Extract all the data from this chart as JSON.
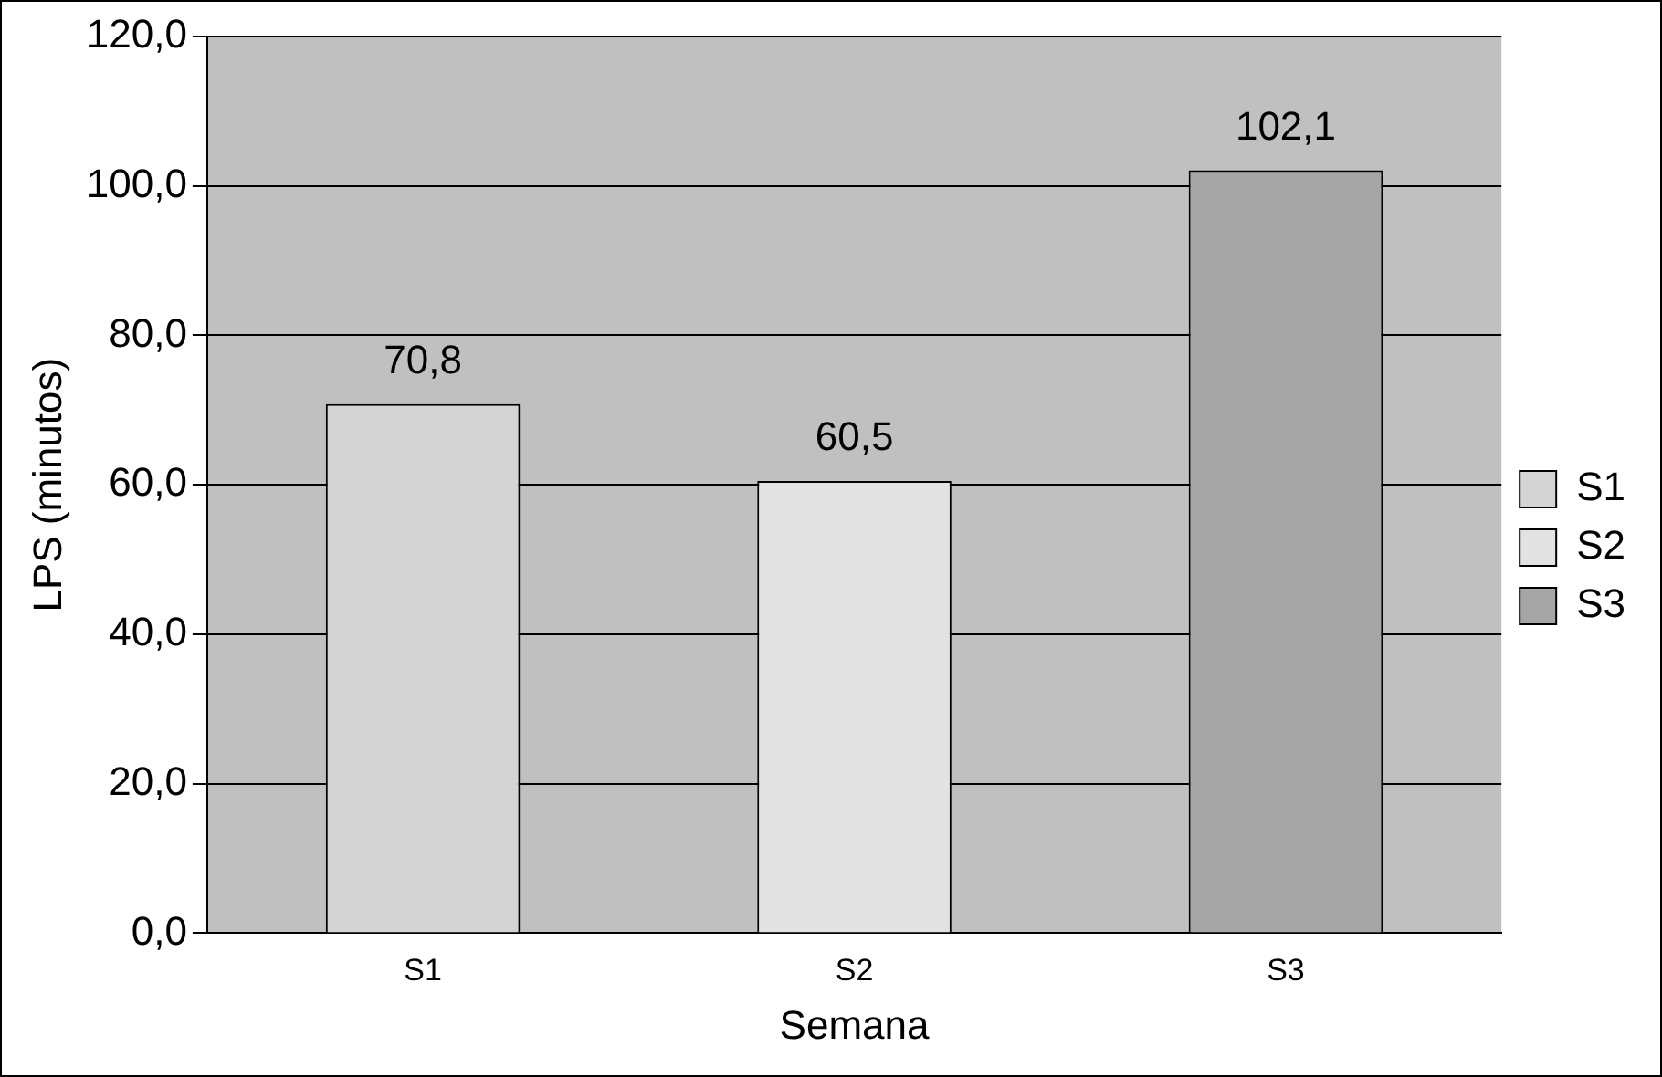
{
  "chart_data": {
    "type": "bar",
    "xlabel": "Semana",
    "ylabel": "LPS (minutos)",
    "categories": [
      "S1",
      "S2",
      "S3"
    ],
    "series": [
      {
        "name": "S1",
        "color": "#d4d4d4",
        "values": [
          70.8,
          null,
          null
        ],
        "value_labels": [
          "70,8",
          null,
          null
        ]
      },
      {
        "name": "S2",
        "color": "#e2e2e2",
        "values": [
          null,
          60.5,
          null
        ],
        "value_labels": [
          null,
          "60,5",
          null
        ]
      },
      {
        "name": "S3",
        "color": "#a6a6a6",
        "values": [
          null,
          null,
          102.1
        ],
        "value_labels": [
          null,
          null,
          "102,1"
        ]
      }
    ],
    "ylim": [
      0,
      120
    ],
    "yticks": [
      {
        "value": 0,
        "label": "0,0"
      },
      {
        "value": 20,
        "label": "20,0"
      },
      {
        "value": 40,
        "label": "40,0"
      },
      {
        "value": 60,
        "label": "60,0"
      },
      {
        "value": 80,
        "label": "80,0"
      },
      {
        "value": 100,
        "label": "100,0"
      },
      {
        "value": 120,
        "label": "120,0"
      }
    ],
    "grid": "y",
    "legend": "right"
  }
}
